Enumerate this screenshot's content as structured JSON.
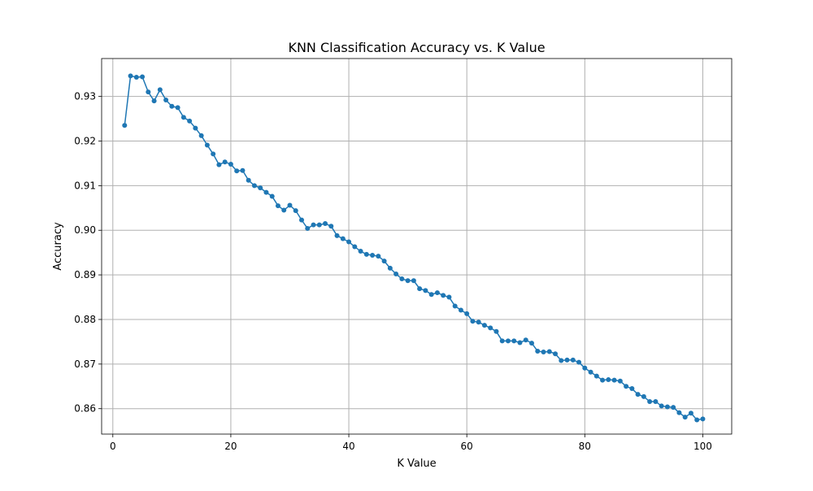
{
  "chart_data": {
    "type": "line",
    "title": "KNN Classification Accuracy vs. K Value",
    "xlabel": "K Value",
    "ylabel": "Accuracy",
    "xlim": [
      -1.9,
      104.9
    ],
    "ylim": [
      0.8543,
      0.9385
    ],
    "x_ticks": [
      0,
      20,
      40,
      60,
      80,
      100
    ],
    "x_tick_labels": [
      "0",
      "20",
      "40",
      "60",
      "80",
      "100"
    ],
    "y_ticks": [
      0.86,
      0.87,
      0.88,
      0.89,
      0.9,
      0.91,
      0.92,
      0.93
    ],
    "y_tick_labels": [
      "0.86",
      "0.87",
      "0.88",
      "0.89",
      "0.90",
      "0.91",
      "0.92",
      "0.93"
    ],
    "grid": true,
    "marker": "circle",
    "colors": {
      "line": "#1f77b4",
      "grid": "#b0b0b0",
      "axes": "#000000"
    },
    "series": [
      {
        "x": [
          2,
          3,
          4,
          5,
          6,
          7,
          8,
          9,
          10,
          11,
          12,
          13,
          14,
          15,
          16,
          17,
          18,
          19,
          20,
          21,
          22,
          23,
          24,
          25,
          26,
          27,
          28,
          29,
          30,
          31,
          32,
          33,
          34,
          35,
          36,
          37,
          38,
          39,
          40,
          41,
          42,
          43,
          44,
          45,
          46,
          47,
          48,
          49,
          50,
          51,
          52,
          53,
          54,
          55,
          56,
          57,
          58,
          59,
          60,
          61,
          62,
          63,
          64,
          65,
          66,
          67,
          68,
          69,
          70,
          71,
          72,
          73,
          74,
          75,
          76,
          77,
          78,
          79,
          80,
          81,
          82,
          83,
          84,
          85,
          86,
          87,
          88,
          89,
          90,
          91,
          92,
          93,
          94,
          95,
          96,
          97,
          98,
          99,
          100
        ],
        "y": [
          0.9235,
          0.9346,
          0.9343,
          0.9344,
          0.931,
          0.929,
          0.9315,
          0.9292,
          0.9278,
          0.9275,
          0.9253,
          0.9245,
          0.9229,
          0.9212,
          0.9191,
          0.9171,
          0.9147,
          0.9153,
          0.9148,
          0.9133,
          0.9134,
          0.9112,
          0.91,
          0.9095,
          0.9085,
          0.9076,
          0.9055,
          0.9045,
          0.9056,
          0.9044,
          0.9023,
          0.9004,
          0.9012,
          0.9012,
          0.9015,
          0.9009,
          0.8988,
          0.8981,
          0.8974,
          0.8963,
          0.8953,
          0.8946,
          0.8944,
          0.8942,
          0.8931,
          0.8915,
          0.8902,
          0.8891,
          0.8887,
          0.8887,
          0.8869,
          0.8865,
          0.8856,
          0.886,
          0.8854,
          0.885,
          0.883,
          0.8821,
          0.8813,
          0.8796,
          0.8794,
          0.8787,
          0.8781,
          0.8773,
          0.8752,
          0.8752,
          0.8752,
          0.8748,
          0.8754,
          0.8747,
          0.8729,
          0.8727,
          0.8728,
          0.8723,
          0.8708,
          0.8709,
          0.8709,
          0.8704,
          0.8691,
          0.8682,
          0.8673,
          0.8664,
          0.8665,
          0.8664,
          0.8662,
          0.865,
          0.8645,
          0.8632,
          0.8627,
          0.8616,
          0.8616,
          0.8606,
          0.8604,
          0.8603,
          0.8591,
          0.8581,
          0.859,
          0.8575,
          0.8577
        ]
      }
    ]
  }
}
